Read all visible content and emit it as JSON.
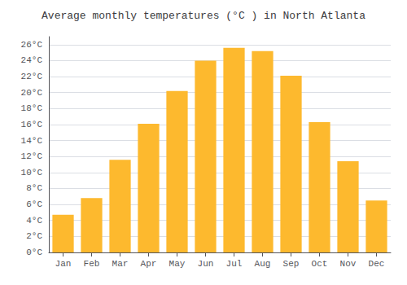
{
  "chart_data": {
    "type": "bar",
    "title": "Average monthly temperatures (°C ) in North Atlanta",
    "categories": [
      "Jan",
      "Feb",
      "Mar",
      "Apr",
      "May",
      "Jun",
      "Jul",
      "Aug",
      "Sep",
      "Oct",
      "Nov",
      "Dec"
    ],
    "values": [
      4.7,
      6.8,
      11.6,
      16.1,
      20.2,
      24.0,
      25.6,
      25.2,
      22.1,
      16.3,
      11.4,
      6.5
    ],
    "color": "#FDB92E",
    "ylim": [
      0,
      27
    ],
    "yticks": [
      {
        "value": 0,
        "label": "0°C"
      },
      {
        "value": 2,
        "label": "2°C"
      },
      {
        "value": 4,
        "label": "4°C"
      },
      {
        "value": 6,
        "label": "6°C"
      },
      {
        "value": 8,
        "label": "8°C"
      },
      {
        "value": 10,
        "label": "10°C"
      },
      {
        "value": 12,
        "label": "12°C"
      },
      {
        "value": 14,
        "label": "14°C"
      },
      {
        "value": 16,
        "label": "16°C"
      },
      {
        "value": 18,
        "label": "18°C"
      },
      {
        "value": 20,
        "label": "20°C"
      },
      {
        "value": 22,
        "label": "22°C"
      },
      {
        "value": 24,
        "label": "24°C"
      },
      {
        "value": 26,
        "label": "26°C"
      }
    ],
    "grid": true
  }
}
